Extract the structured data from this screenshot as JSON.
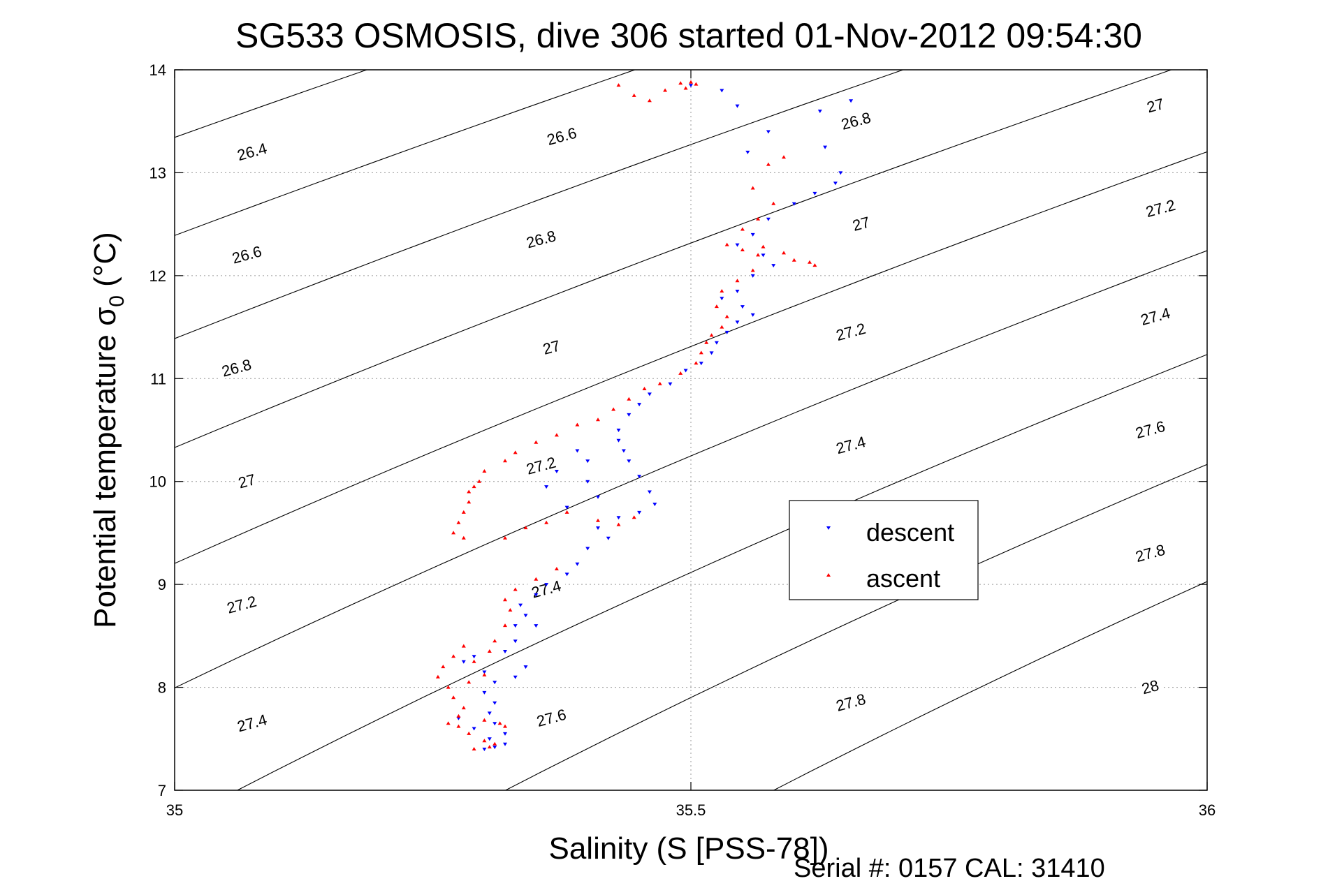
{
  "chart_data": {
    "type": "scatter",
    "title": "SG533 OSMOSIS, dive 306 started 01-Nov-2012 09:54:30",
    "xlabel": "Salinity (S [PSS-78])",
    "ylabel_main": "Potential temperature σ",
    "ylabel_sub": "0",
    "ylabel_unit": " (°C)",
    "footer": "Serial #: 0157  CAL: 31410",
    "xlim": [
      35,
      36
    ],
    "ylim": [
      7,
      14
    ],
    "x_ticks": [
      "35",
      "35.5",
      "36"
    ],
    "y_ticks": [
      "7",
      "8",
      "9",
      "10",
      "11",
      "12",
      "13",
      "14"
    ],
    "grid": "dotted",
    "legend_position": "right-center",
    "colors": {
      "descent": "#0000ff",
      "ascent": "#ff0000",
      "contour": "#000000"
    },
    "contour_levels": [
      "26.4",
      "26.6",
      "26.8",
      "27",
      "27.2",
      "27.4",
      "27.6",
      "27.8",
      "28"
    ],
    "contour_labels": [
      {
        "text": "26.4",
        "S": 35.075,
        "T": 13.2
      },
      {
        "text": "26.6",
        "S": 35.375,
        "T": 13.35
      },
      {
        "text": "26.8",
        "S": 35.66,
        "T": 13.5
      },
      {
        "text": "27",
        "S": 35.95,
        "T": 13.65
      },
      {
        "text": "26.6",
        "S": 35.07,
        "T": 12.2
      },
      {
        "text": "26.8",
        "S": 35.355,
        "T": 12.35
      },
      {
        "text": "27",
        "S": 35.665,
        "T": 12.5
      },
      {
        "text": "27.2",
        "S": 35.955,
        "T": 12.65
      },
      {
        "text": "26.8",
        "S": 35.06,
        "T": 11.1
      },
      {
        "text": "27",
        "S": 35.365,
        "T": 11.3
      },
      {
        "text": "27.2",
        "S": 35.655,
        "T": 11.45
      },
      {
        "text": "27.4",
        "S": 35.95,
        "T": 11.6
      },
      {
        "text": "27",
        "S": 35.07,
        "T": 10.0
      },
      {
        "text": "27.2",
        "S": 35.355,
        "T": 10.15
      },
      {
        "text": "27.4",
        "S": 35.655,
        "T": 10.35
      },
      {
        "text": "27.6",
        "S": 35.945,
        "T": 10.5
      },
      {
        "text": "27.2",
        "S": 35.065,
        "T": 8.8
      },
      {
        "text": "27.4",
        "S": 35.36,
        "T": 8.95
      },
      {
        "text": "27.8",
        "S": 35.945,
        "T": 9.3
      },
      {
        "text": "27.4",
        "S": 35.075,
        "T": 7.65
      },
      {
        "text": "27.6",
        "S": 35.365,
        "T": 7.7
      },
      {
        "text": "27.8",
        "S": 35.655,
        "T": 7.85
      },
      {
        "text": "28",
        "S": 35.945,
        "T": 8.0
      }
    ],
    "series": [
      {
        "name": "descent",
        "marker": "triangle-down",
        "points": [
          [
            35.5,
            13.85
          ],
          [
            35.53,
            13.8
          ],
          [
            35.545,
            13.65
          ],
          [
            35.555,
            13.2
          ],
          [
            35.575,
            13.4
          ],
          [
            35.625,
            13.6
          ],
          [
            35.655,
            13.7
          ],
          [
            35.63,
            13.25
          ],
          [
            35.645,
            13.0
          ],
          [
            35.64,
            12.9
          ],
          [
            35.62,
            12.8
          ],
          [
            35.6,
            12.7
          ],
          [
            35.575,
            12.55
          ],
          [
            35.56,
            12.4
          ],
          [
            35.545,
            12.3
          ],
          [
            35.57,
            12.2
          ],
          [
            35.58,
            12.1
          ],
          [
            35.56,
            12.0
          ],
          [
            35.545,
            11.85
          ],
          [
            35.53,
            11.78
          ],
          [
            35.55,
            11.7
          ],
          [
            35.56,
            11.62
          ],
          [
            35.545,
            11.55
          ],
          [
            35.535,
            11.45
          ],
          [
            35.525,
            11.35
          ],
          [
            35.52,
            11.25
          ],
          [
            35.51,
            11.15
          ],
          [
            35.495,
            11.08
          ],
          [
            35.48,
            10.95
          ],
          [
            35.46,
            10.85
          ],
          [
            35.45,
            10.75
          ],
          [
            35.44,
            10.65
          ],
          [
            35.43,
            10.5
          ],
          [
            35.43,
            10.4
          ],
          [
            35.435,
            10.3
          ],
          [
            35.44,
            10.2
          ],
          [
            35.45,
            10.05
          ],
          [
            35.46,
            9.9
          ],
          [
            35.465,
            9.78
          ],
          [
            35.45,
            9.7
          ],
          [
            35.43,
            9.65
          ],
          [
            35.41,
            9.85
          ],
          [
            35.4,
            10.0
          ],
          [
            35.4,
            10.2
          ],
          [
            35.39,
            10.3
          ],
          [
            35.37,
            10.1
          ],
          [
            35.36,
            9.95
          ],
          [
            35.38,
            9.75
          ],
          [
            35.41,
            9.55
          ],
          [
            35.42,
            9.45
          ],
          [
            35.4,
            9.35
          ],
          [
            35.39,
            9.2
          ],
          [
            35.38,
            9.1
          ],
          [
            35.36,
            9.0
          ],
          [
            35.35,
            8.9
          ],
          [
            35.335,
            8.8
          ],
          [
            35.34,
            8.7
          ],
          [
            35.33,
            8.6
          ],
          [
            35.33,
            8.45
          ],
          [
            35.32,
            8.35
          ],
          [
            35.34,
            8.2
          ],
          [
            35.33,
            8.1
          ],
          [
            35.31,
            8.05
          ],
          [
            35.3,
            7.95
          ],
          [
            35.31,
            7.85
          ],
          [
            35.305,
            7.75
          ],
          [
            35.31,
            7.65
          ],
          [
            35.32,
            7.55
          ],
          [
            35.305,
            7.5
          ],
          [
            35.31,
            7.42
          ],
          [
            35.3,
            7.4
          ],
          [
            35.32,
            7.45
          ],
          [
            35.29,
            8.3
          ],
          [
            35.28,
            8.25
          ],
          [
            35.3,
            8.15
          ],
          [
            35.275,
            7.7
          ],
          [
            35.29,
            7.6
          ],
          [
            35.35,
            8.6
          ]
        ]
      },
      {
        "name": "ascent",
        "marker": "triangle-up",
        "points": [
          [
            35.43,
            13.85
          ],
          [
            35.445,
            13.75
          ],
          [
            35.46,
            13.7
          ],
          [
            35.475,
            13.8
          ],
          [
            35.49,
            13.87
          ],
          [
            35.5,
            13.88
          ],
          [
            35.505,
            13.86
          ],
          [
            35.495,
            13.82
          ],
          [
            35.59,
            13.15
          ],
          [
            35.575,
            13.08
          ],
          [
            35.56,
            12.85
          ],
          [
            35.58,
            12.7
          ],
          [
            35.565,
            12.55
          ],
          [
            35.55,
            12.45
          ],
          [
            35.535,
            12.3
          ],
          [
            35.55,
            12.25
          ],
          [
            35.565,
            12.2
          ],
          [
            35.57,
            12.28
          ],
          [
            35.59,
            12.22
          ],
          [
            35.6,
            12.15
          ],
          [
            35.615,
            12.13
          ],
          [
            35.62,
            12.1
          ],
          [
            35.56,
            12.05
          ],
          [
            35.545,
            11.95
          ],
          [
            35.53,
            11.85
          ],
          [
            35.525,
            11.7
          ],
          [
            35.535,
            11.6
          ],
          [
            35.53,
            11.5
          ],
          [
            35.52,
            11.42
          ],
          [
            35.515,
            11.35
          ],
          [
            35.51,
            11.25
          ],
          [
            35.505,
            11.15
          ],
          [
            35.49,
            11.05
          ],
          [
            35.47,
            10.95
          ],
          [
            35.455,
            10.9
          ],
          [
            35.44,
            10.8
          ],
          [
            35.425,
            10.7
          ],
          [
            35.41,
            10.6
          ],
          [
            35.39,
            10.55
          ],
          [
            35.37,
            10.45
          ],
          [
            35.35,
            10.38
          ],
          [
            35.33,
            10.28
          ],
          [
            35.32,
            10.2
          ],
          [
            35.3,
            10.1
          ],
          [
            35.295,
            10.0
          ],
          [
            35.29,
            9.95
          ],
          [
            35.285,
            9.9
          ],
          [
            35.285,
            9.8
          ],
          [
            35.28,
            9.7
          ],
          [
            35.275,
            9.6
          ],
          [
            35.27,
            9.5
          ],
          [
            35.28,
            9.45
          ],
          [
            35.32,
            9.45
          ],
          [
            35.34,
            9.55
          ],
          [
            35.36,
            9.6
          ],
          [
            35.38,
            9.7
          ],
          [
            35.41,
            9.62
          ],
          [
            35.43,
            9.58
          ],
          [
            35.445,
            9.65
          ],
          [
            35.37,
            9.15
          ],
          [
            35.35,
            9.05
          ],
          [
            35.33,
            8.95
          ],
          [
            35.32,
            8.85
          ],
          [
            35.325,
            8.75
          ],
          [
            35.32,
            8.6
          ],
          [
            35.31,
            8.45
          ],
          [
            35.305,
            8.35
          ],
          [
            35.29,
            8.25
          ],
          [
            35.3,
            8.12
          ],
          [
            35.285,
            8.05
          ],
          [
            35.265,
            8.0
          ],
          [
            35.255,
            8.1
          ],
          [
            35.26,
            8.2
          ],
          [
            35.27,
            8.3
          ],
          [
            35.28,
            8.4
          ],
          [
            35.27,
            7.9
          ],
          [
            35.28,
            7.8
          ],
          [
            35.275,
            7.72
          ],
          [
            35.265,
            7.65
          ],
          [
            35.275,
            7.62
          ],
          [
            35.285,
            7.55
          ],
          [
            35.3,
            7.48
          ],
          [
            35.31,
            7.45
          ],
          [
            35.305,
            7.42
          ],
          [
            35.29,
            7.4
          ],
          [
            35.3,
            7.68
          ],
          [
            35.315,
            7.65
          ],
          [
            35.32,
            7.62
          ]
        ]
      }
    ]
  }
}
